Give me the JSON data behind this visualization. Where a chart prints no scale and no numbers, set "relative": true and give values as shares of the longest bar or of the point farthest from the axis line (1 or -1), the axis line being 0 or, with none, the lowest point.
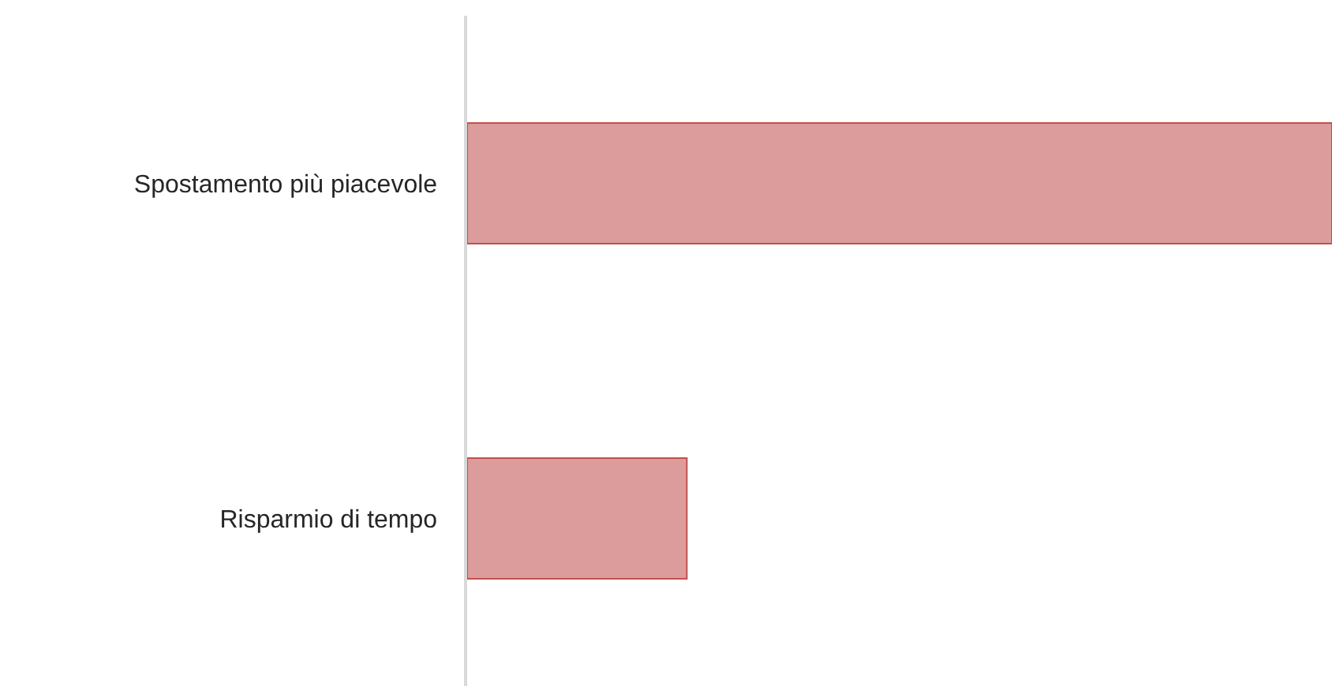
{
  "chart_data": {
    "type": "bar",
    "orientation": "horizontal",
    "relative": true,
    "categories": [
      "Spostamento più piacevole",
      "Risparmio di tempo"
    ],
    "values": [
      1,
      0.254
    ],
    "color": "#dc9c9b",
    "legend": false
  }
}
